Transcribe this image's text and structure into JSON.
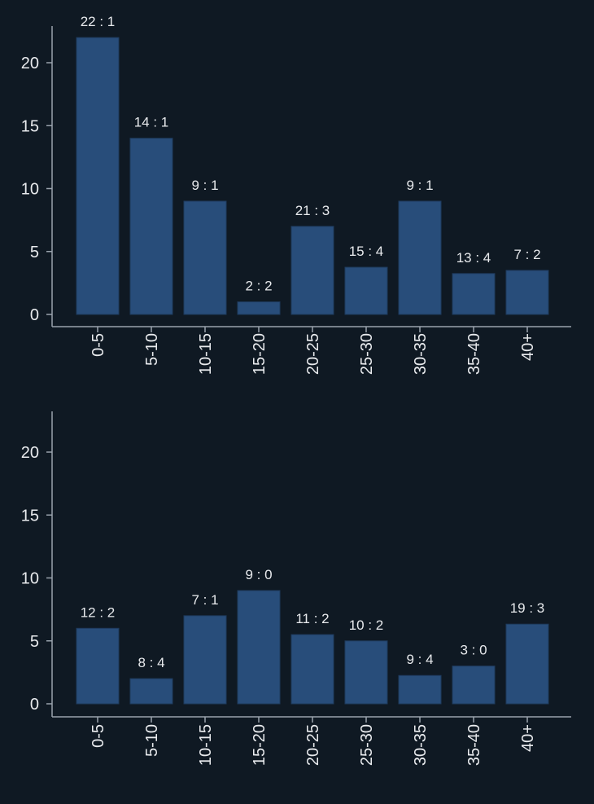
{
  "colors": {
    "background": "#0f1923",
    "bar": "#284d7a",
    "bar_edge": "#1e3a5c",
    "text": "#e8eaed",
    "axis": "#9aa3ad"
  },
  "chart_data": [
    {
      "type": "bar",
      "title": "",
      "xlabel": "",
      "ylabel": "",
      "ylim": [
        0,
        23
      ],
      "yticks": [
        0,
        5,
        10,
        15,
        20
      ],
      "categories": [
        "0-5",
        "5-10",
        "10-15",
        "15-20",
        "20-25",
        "25-30",
        "30-35",
        "35-40",
        "40+"
      ],
      "values": [
        22,
        14,
        9,
        1,
        7,
        3.75,
        9,
        3.25,
        3.5
      ],
      "data_labels": [
        "22 : 1",
        "14 : 1",
        "9 : 1",
        "2 : 2",
        "21 : 3",
        "15 : 4",
        "9 : 1",
        "13 : 4",
        "7 : 2"
      ]
    },
    {
      "type": "bar",
      "title": "",
      "xlabel": "",
      "ylabel": "",
      "ylim": [
        0,
        23
      ],
      "yticks": [
        0,
        5,
        10,
        15,
        20
      ],
      "categories": [
        "0-5",
        "5-10",
        "10-15",
        "15-20",
        "20-25",
        "25-30",
        "30-35",
        "35-40",
        "40+"
      ],
      "values": [
        6,
        2,
        7,
        9,
        5.5,
        5,
        2.25,
        3,
        6.33
      ],
      "data_labels": [
        "12 : 2",
        "8 : 4",
        "7 : 1",
        "9 : 0",
        "11 : 2",
        "10 : 2",
        "9 : 4",
        "3 : 0",
        "19 : 3"
      ]
    }
  ]
}
